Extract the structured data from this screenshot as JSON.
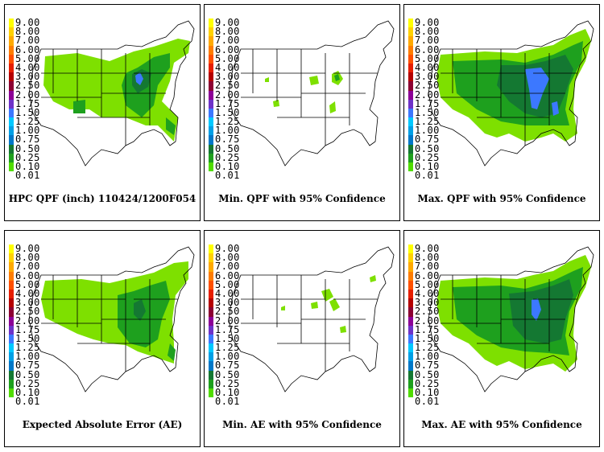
{
  "legend": {
    "levels": [
      {
        "label": "9.00",
        "color": "#ffff00"
      },
      {
        "label": "8.00",
        "color": "#ffd200"
      },
      {
        "label": "7.00",
        "color": "#ffaa00"
      },
      {
        "label": "6.00",
        "color": "#ff7d00"
      },
      {
        "label": "5.00",
        "color": "#ff5000"
      },
      {
        "label": "4.00",
        "color": "#e61e00"
      },
      {
        "label": "3.00",
        "color": "#b40000"
      },
      {
        "label": "2.50",
        "color": "#8c0032"
      },
      {
        "label": "2.00",
        "color": "#8c0096"
      },
      {
        "label": "1.75",
        "color": "#6e32c8"
      },
      {
        "label": "1.50",
        "color": "#3c78ff"
      },
      {
        "label": "1.25",
        "color": "#00c8ff"
      },
      {
        "label": "1.00",
        "color": "#00a0e6"
      },
      {
        "label": "0.75",
        "color": "#0078c8"
      },
      {
        "label": "0.50",
        "color": "#147832"
      },
      {
        "label": "0.25",
        "color": "#1ea01e"
      },
      {
        "label": "0.10",
        "color": "#50dc00"
      },
      {
        "label": "0.01",
        "color": "#ffffff"
      }
    ]
  },
  "panels": [
    {
      "caption": "HPC QPF (inch) 110424/1200F054"
    },
    {
      "caption": "Min. QPF with 95% Confidence"
    },
    {
      "caption": "Max. QPF with 95% Confidence"
    },
    {
      "caption": "Expected Absolute Error (AE)"
    },
    {
      "caption": "Min. AE with 95% Confidence"
    },
    {
      "caption": "Max. AE with 95% Confidence"
    }
  ],
  "colors": {
    "light_green": "#7ee000",
    "mid_green": "#1ea01e",
    "dark_green": "#147832",
    "blue": "#3c78ff"
  }
}
